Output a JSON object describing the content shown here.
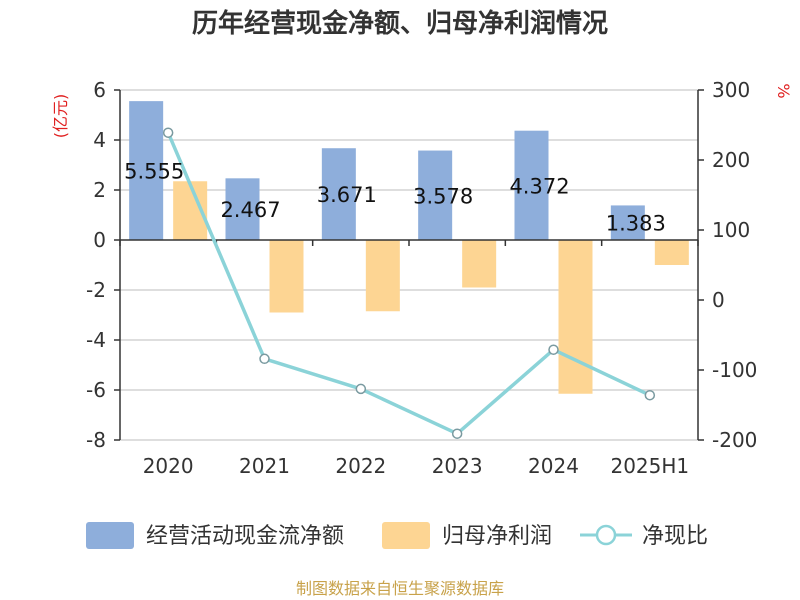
{
  "chart_data": {
    "type": "bar",
    "title": "历年经营现金净额、归母净利润情况",
    "categories": [
      "2020",
      "2021",
      "2022",
      "2023",
      "2024",
      "2025H1"
    ],
    "y_left": {
      "unit_label": "(亿元)",
      "ylim": [
        -8,
        6
      ],
      "ticks": [
        "6",
        "4",
        "2",
        "0",
        "-2",
        "-4",
        "-6",
        "-8"
      ],
      "tick_values": [
        6,
        4,
        2,
        0,
        -2,
        -4,
        -6,
        -8
      ]
    },
    "y_right": {
      "unit_label": "%",
      "ylim": [
        -200,
        300
      ],
      "ticks": [
        "300",
        "200",
        "100",
        "0",
        "-100",
        "-200"
      ],
      "tick_values": [
        300,
        200,
        100,
        0,
        -100,
        -200
      ]
    },
    "series": [
      {
        "name": "经营活动现金流净额",
        "kind": "bar",
        "axis": "left",
        "color": "#8eaedb",
        "values": [
          5.555,
          2.467,
          3.671,
          3.578,
          4.372,
          1.383
        ],
        "labels": [
          "5.555",
          "2.467",
          "3.671",
          "3.578",
          "4.372",
          "1.383"
        ]
      },
      {
        "name": "归母净利润",
        "kind": "bar",
        "axis": "left",
        "color": "#fdd593",
        "values": [
          2.35,
          -2.9,
          -2.85,
          -1.9,
          -6.15,
          -1.0
        ]
      },
      {
        "name": "净现比",
        "kind": "line",
        "axis": "right",
        "color": "#8bd3d8",
        "values": [
          239,
          -84,
          -127,
          -191,
          -71,
          -136
        ]
      }
    ],
    "grid": true,
    "legend_position": "bottom"
  },
  "source_note": "制图数据来自恒生聚源数据库"
}
